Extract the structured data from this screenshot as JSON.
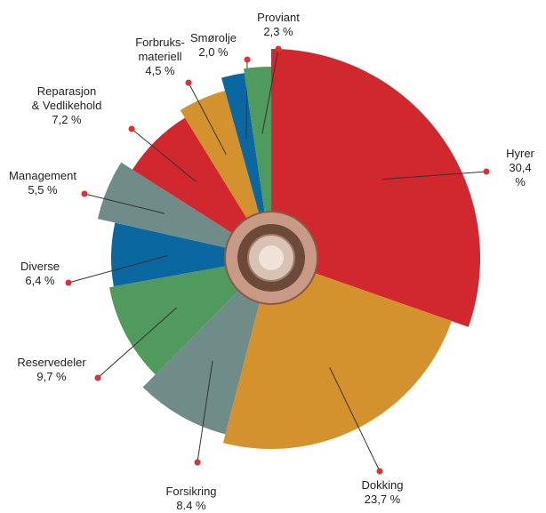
{
  "chart_data": {
    "type": "pie",
    "categories": [
      "Hyrer",
      "Dokking",
      "Forsikring",
      "Reservedeler",
      "Diverse",
      "Management",
      "Reparasjon\n& Vedlikehold",
      "Forbruks-\nmateriell",
      "Smørolje",
      "Proviant"
    ],
    "values": [
      30.4,
      23.7,
      8.4,
      9.7,
      6.4,
      5.5,
      7.2,
      4.5,
      2.0,
      2.3
    ],
    "value_labels": [
      "30,4 %",
      "23,7 %",
      "8.4 %",
      "9,7 %",
      "6,4 %",
      "5,5 %",
      "7,2 %",
      "4,5 %",
      "2,0 %",
      "2,3 %"
    ],
    "colors": [
      "#d0282e",
      "#d4922e",
      "#6f8c89",
      "#4f9a5c",
      "#0b67a0",
      "#6f8c89",
      "#d0282e",
      "#d4922e",
      "#0b67a0",
      "#4f9a5c"
    ]
  }
}
